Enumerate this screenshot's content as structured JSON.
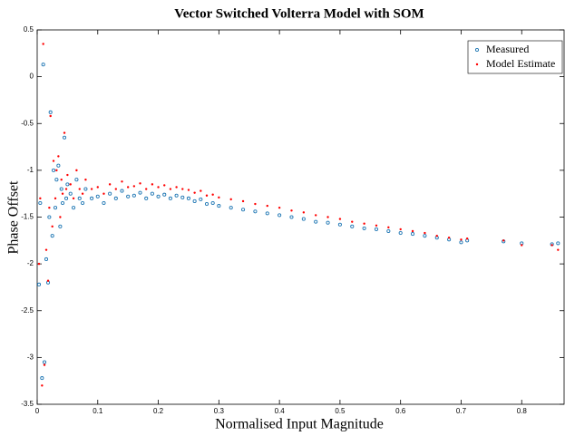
{
  "chart_data": {
    "type": "scatter",
    "title": "Vector Switched Volterra Model with SOM",
    "x_label": "Normalised Input Magnitude",
    "y_label": "Phase Offset",
    "x": [
      0.003,
      0.005,
      0.008,
      0.01,
      0.012,
      0.015,
      0.018,
      0.02,
      0.022,
      0.025,
      0.027,
      0.03,
      0.032,
      0.035,
      0.038,
      0.04,
      0.042,
      0.045,
      0.048,
      0.05,
      0.055,
      0.06,
      0.065,
      0.07,
      0.075,
      0.08,
      0.09,
      0.1,
      0.11,
      0.12,
      0.13,
      0.14,
      0.15,
      0.16,
      0.17,
      0.18,
      0.19,
      0.2,
      0.21,
      0.22,
      0.23,
      0.24,
      0.25,
      0.26,
      0.27,
      0.28,
      0.29,
      0.3,
      0.32,
      0.34,
      0.36,
      0.38,
      0.4,
      0.42,
      0.44,
      0.46,
      0.48,
      0.5,
      0.52,
      0.54,
      0.56,
      0.58,
      0.6,
      0.62,
      0.64,
      0.66,
      0.68,
      0.7,
      0.71,
      0.77,
      0.8,
      0.85,
      0.86
    ],
    "series": [
      {
        "name": "Measured",
        "color": "#1f77b4",
        "marker": "circle",
        "values": [
          -2.22,
          -1.35,
          -3.22,
          0.13,
          -3.05,
          -1.95,
          -2.2,
          -1.5,
          -0.38,
          -1.7,
          -1.0,
          -1.4,
          -1.1,
          -0.95,
          -1.6,
          -1.2,
          -1.35,
          -0.65,
          -1.3,
          -1.15,
          -1.25,
          -1.4,
          -1.1,
          -1.3,
          -1.35,
          -1.2,
          -1.3,
          -1.28,
          -1.35,
          -1.25,
          -1.3,
          -1.22,
          -1.28,
          -1.27,
          -1.24,
          -1.3,
          -1.25,
          -1.28,
          -1.26,
          -1.3,
          -1.27,
          -1.29,
          -1.3,
          -1.33,
          -1.31,
          -1.36,
          -1.35,
          -1.38,
          -1.4,
          -1.42,
          -1.44,
          -1.46,
          -1.48,
          -1.5,
          -1.52,
          -1.55,
          -1.56,
          -1.58,
          -1.6,
          -1.62,
          -1.63,
          -1.65,
          -1.67,
          -1.68,
          -1.7,
          -1.72,
          -1.74,
          -1.77,
          -1.75,
          -1.76,
          -1.78,
          -1.79,
          -1.78
        ]
      },
      {
        "name": "Model Estimate",
        "color": "#ff0000",
        "marker": "dot",
        "values": [
          -2.0,
          -1.3,
          -3.3,
          0.35,
          -3.08,
          -1.85,
          -2.18,
          -1.4,
          -0.42,
          -1.6,
          -0.9,
          -1.3,
          -1.0,
          -0.85,
          -1.5,
          -1.1,
          -1.25,
          -0.6,
          -1.2,
          -1.05,
          -1.15,
          -1.3,
          -1.0,
          -1.2,
          -1.25,
          -1.1,
          -1.2,
          -1.18,
          -1.25,
          -1.15,
          -1.2,
          -1.12,
          -1.18,
          -1.17,
          -1.14,
          -1.2,
          -1.15,
          -1.18,
          -1.16,
          -1.2,
          -1.18,
          -1.2,
          -1.21,
          -1.24,
          -1.22,
          -1.27,
          -1.26,
          -1.29,
          -1.31,
          -1.33,
          -1.36,
          -1.38,
          -1.4,
          -1.43,
          -1.45,
          -1.48,
          -1.5,
          -1.52,
          -1.55,
          -1.57,
          -1.59,
          -1.61,
          -1.63,
          -1.65,
          -1.67,
          -1.7,
          -1.72,
          -1.74,
          -1.73,
          -1.75,
          -1.8,
          -1.8,
          -1.85
        ]
      }
    ],
    "xlim": [
      0,
      0.87
    ],
    "ylim": [
      -3.5,
      0.5
    ],
    "xticks": [
      0,
      0.1,
      0.2,
      0.3,
      0.4,
      0.5,
      0.6,
      0.7,
      0.8
    ],
    "yticks": [
      -3.5,
      -3,
      -2.5,
      -2,
      -1.5,
      -1,
      -0.5,
      0,
      0.5
    ],
    "legend": "upper right",
    "grid": false
  }
}
